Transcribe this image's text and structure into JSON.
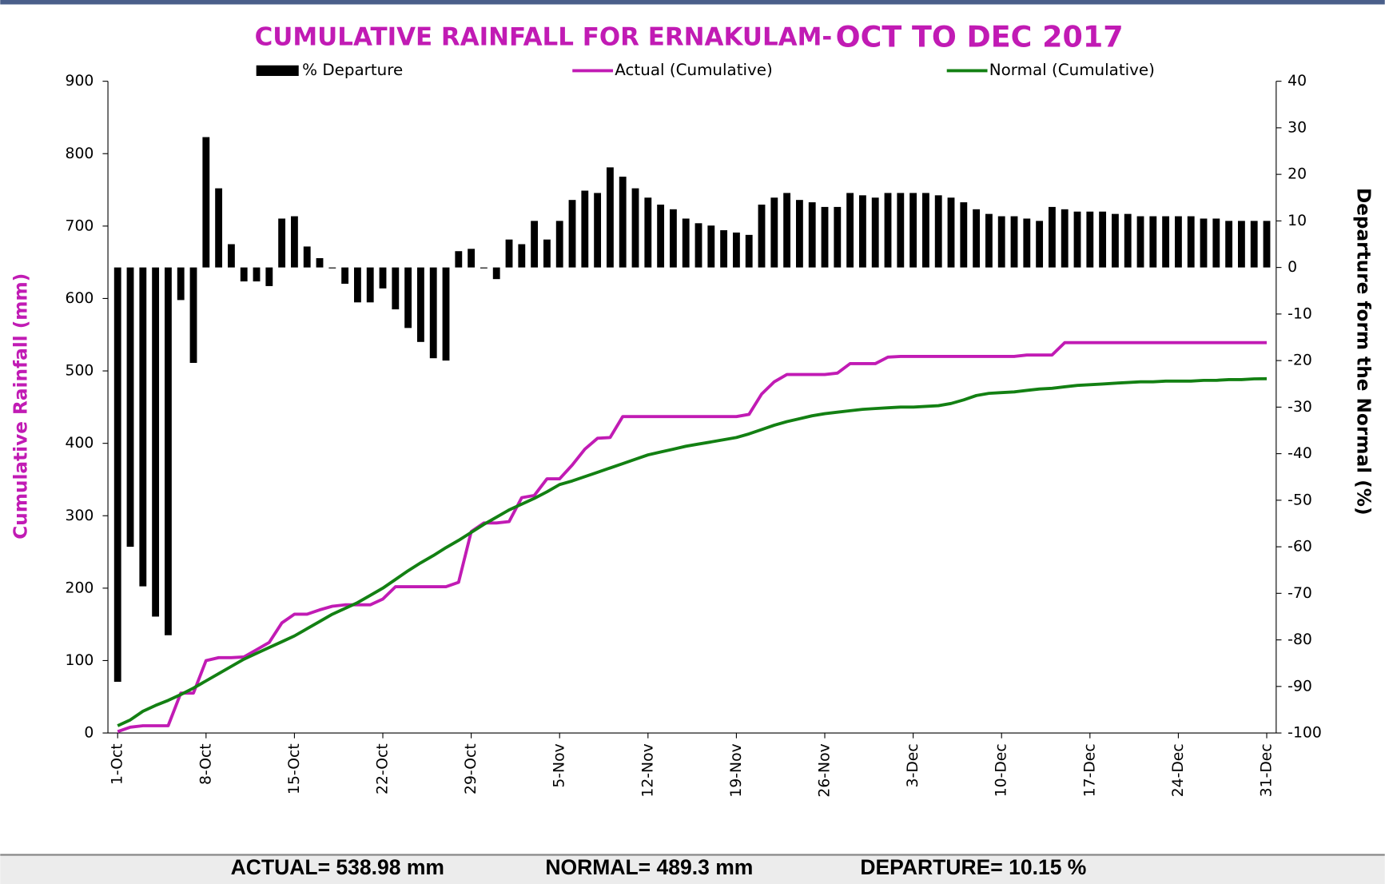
{
  "chart_data": {
    "type": "combo",
    "title": "CUMULATIVE RAINFALL FOR ERNAKULAM-",
    "title_emphasis": "OCT TO DEC 2017",
    "y_label": "Cumulative Rainfall (mm)",
    "y2_label": "Departure form the Normal (%)",
    "categories": [
      "1-Oct",
      null,
      null,
      null,
      null,
      null,
      null,
      "8-Oct",
      null,
      null,
      null,
      null,
      null,
      null,
      "15-Oct",
      null,
      null,
      null,
      null,
      null,
      null,
      "22-Oct",
      null,
      null,
      null,
      null,
      null,
      null,
      "29-Oct",
      null,
      null,
      null,
      null,
      null,
      null,
      "5-Nov",
      null,
      null,
      null,
      null,
      null,
      null,
      "12-Nov",
      null,
      null,
      null,
      null,
      null,
      null,
      "19-Nov",
      null,
      null,
      null,
      null,
      null,
      null,
      "26-Nov",
      null,
      null,
      null,
      null,
      null,
      null,
      "3-Dec",
      null,
      null,
      null,
      null,
      null,
      null,
      "10-Dec",
      null,
      null,
      null,
      null,
      null,
      null,
      "17-Dec",
      null,
      null,
      null,
      null,
      null,
      null,
      "24-Dec",
      null,
      null,
      null,
      null,
      null,
      null,
      "31-Dec"
    ],
    "ylim": [
      0,
      900
    ],
    "yticks": [
      0,
      100,
      200,
      300,
      400,
      500,
      600,
      700,
      800,
      900
    ],
    "y2lim": [
      -100,
      40
    ],
    "y2ticks": [
      -100,
      -90,
      -80,
      -70,
      -60,
      -50,
      -40,
      -30,
      -20,
      -10,
      0,
      10,
      20,
      30,
      40
    ],
    "series": [
      {
        "name": "% Departure",
        "type": "bar",
        "axis": "y2",
        "color": "#000000",
        "values": [
          -89,
          -60,
          -68.5,
          -75,
          -79,
          -7,
          -20.5,
          28,
          17,
          5,
          -3,
          -3,
          -4,
          10.5,
          11,
          4.5,
          2,
          -0.2,
          -3.5,
          -7.5,
          -7.5,
          -4.5,
          -9,
          -13,
          -16,
          -19.5,
          -20,
          3.5,
          4,
          -0.2,
          -2.5,
          6,
          5,
          10,
          6,
          10,
          14.5,
          16.5,
          16,
          21.5,
          19.5,
          17,
          15,
          13.5,
          12.5,
          10.5,
          9.5,
          9,
          8,
          7.5,
          7,
          13.5,
          15,
          16,
          14.5,
          14,
          13,
          13,
          16,
          15.5,
          15,
          16,
          16,
          16,
          16,
          15.5,
          15,
          14,
          12.5,
          11.5,
          11,
          11,
          10.5,
          10,
          13,
          12.5,
          12,
          12,
          12,
          11.5,
          11.5,
          11,
          11,
          11,
          11,
          11,
          10.5,
          10.5,
          10,
          10,
          10,
          10
        ]
      },
      {
        "name": "Actual (Cumulative)",
        "type": "line",
        "color": "#c11bb4",
        "values": [
          2,
          8,
          10,
          10,
          10,
          55,
          55,
          100,
          104,
          104,
          105,
          115,
          125,
          152,
          164,
          164,
          170,
          175,
          177,
          177,
          177,
          185,
          202,
          202,
          202,
          202,
          202,
          208,
          278,
          290,
          290,
          292,
          325,
          328,
          351,
          351,
          370,
          392,
          407,
          408,
          437,
          437,
          437,
          437,
          437,
          437,
          437,
          437,
          437,
          437,
          440,
          468,
          485,
          495,
          495,
          495,
          495,
          497,
          510,
          510,
          510,
          519,
          520,
          520,
          520,
          520,
          520,
          520,
          520,
          520,
          520,
          520,
          522,
          522,
          522,
          539,
          539,
          539,
          539,
          539,
          539,
          539,
          539,
          539,
          539,
          539,
          539,
          539,
          539,
          539,
          539,
          539
        ]
      },
      {
        "name": "Normal (Cumulative)",
        "type": "line",
        "color": "#138013",
        "values": [
          10,
          18,
          30,
          38,
          45,
          53,
          62,
          72,
          82,
          92,
          102,
          110,
          118,
          126,
          134,
          144,
          154,
          164,
          172,
          180,
          190,
          200,
          212,
          224,
          235,
          245,
          256,
          266,
          277,
          288,
          298,
          308,
          316,
          324,
          333,
          343,
          348,
          354,
          360,
          366,
          372,
          378,
          384,
          388,
          392,
          396,
          399,
          402,
          405,
          408,
          413,
          419,
          425,
          430,
          434,
          438,
          441,
          443,
          445,
          447,
          448,
          449,
          450,
          450,
          451,
          452,
          455,
          460,
          466,
          469,
          470,
          471,
          473,
          475,
          476,
          478,
          480,
          481,
          482,
          483,
          484,
          485,
          485,
          486,
          486,
          486,
          487,
          487,
          488,
          488,
          489,
          489.3
        ]
      }
    ],
    "footer": [
      "ACTUAL= 538.98 mm",
      "NORMAL= 489.3 mm",
      "DEPARTURE= 10.15 %"
    ]
  }
}
